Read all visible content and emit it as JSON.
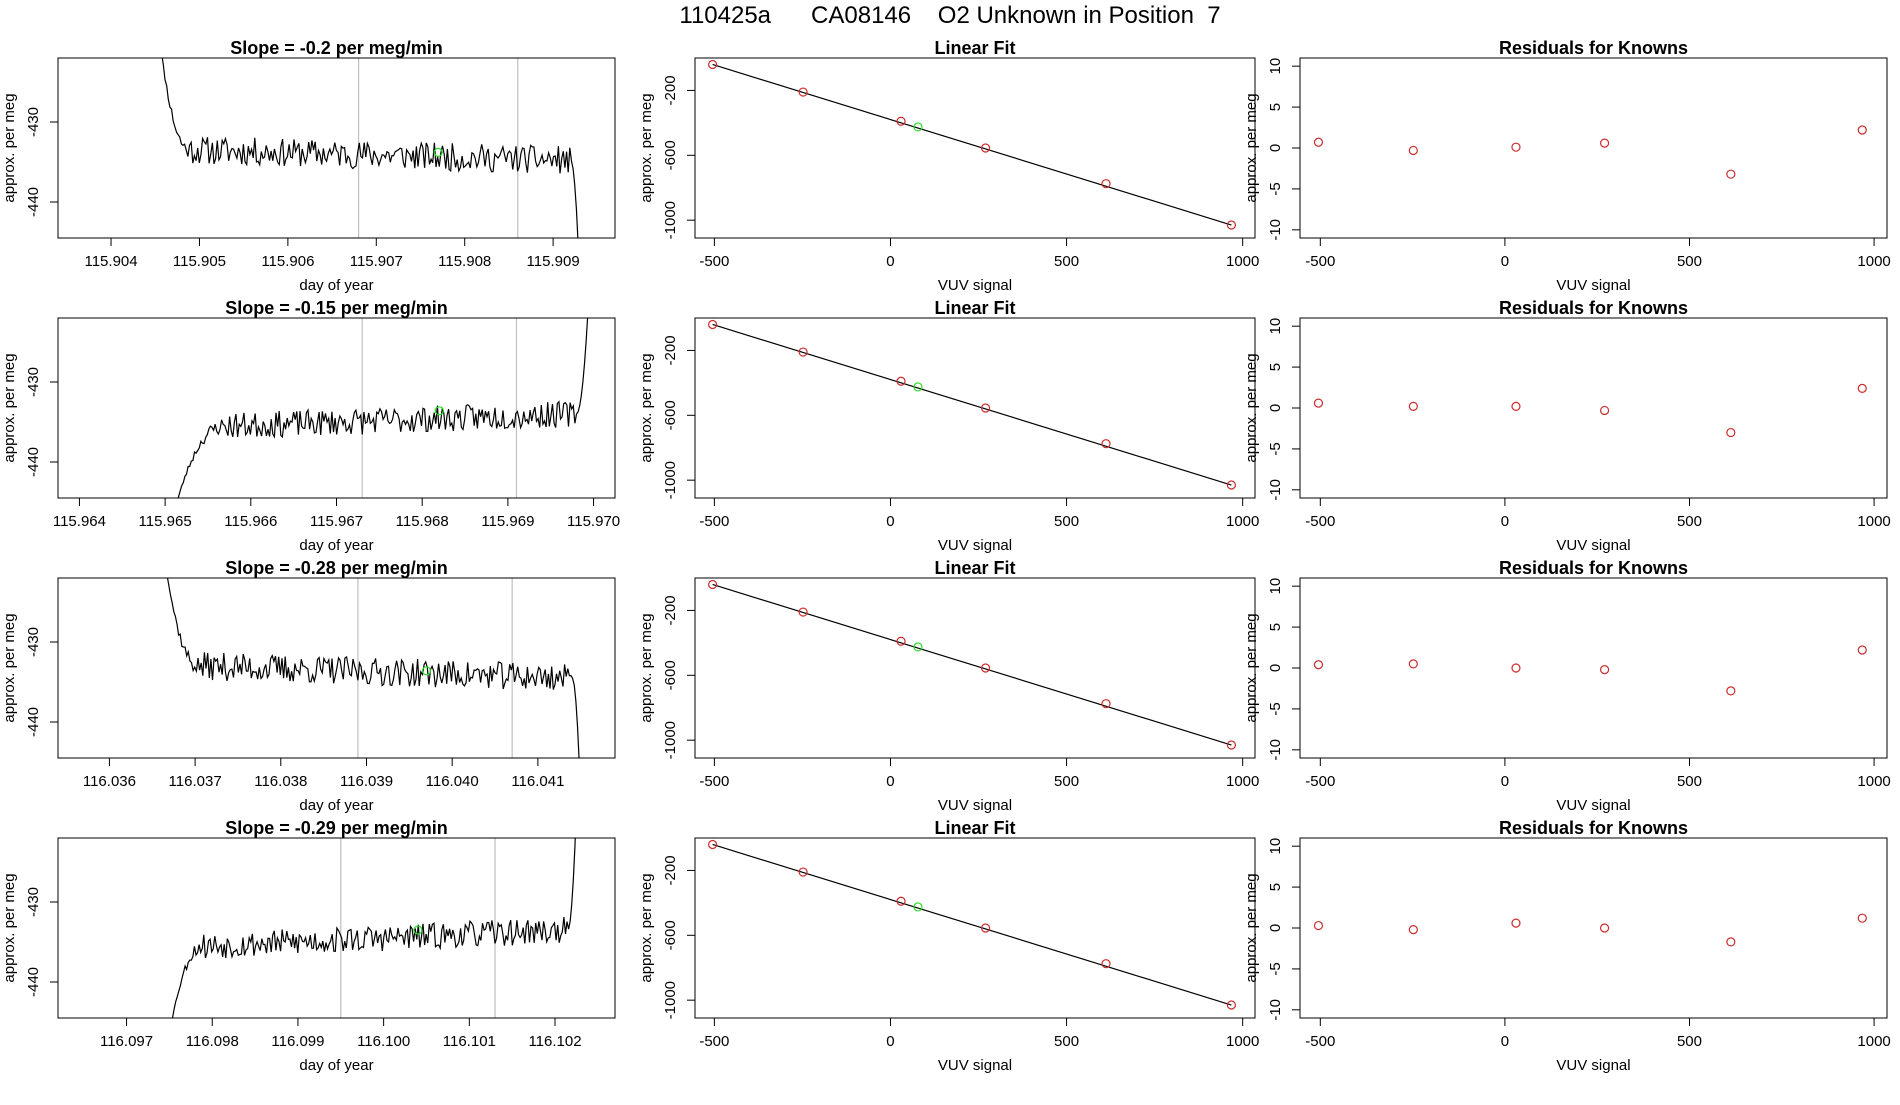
{
  "figure": {
    "title": "110425a      CA08146    O2 Unknown in Position  7"
  },
  "colors": {
    "axes": "#000000",
    "trace": "#000000",
    "marker_vline": "#bfbfbf",
    "known_points": "#cd2a2a",
    "unknown_point": "#22dd22",
    "fit_line": "#000000"
  },
  "chart_data": [
    {
      "type": "line",
      "panel": "time",
      "row": 0,
      "title": "Slope =  -0.2  per meg/min",
      "xlabel": "day of year",
      "ylabel": "approx. per meg",
      "xlim": [
        115.9034,
        115.9097
      ],
      "ylim": [
        -444.5,
        -422.0
      ],
      "xticks": [
        115.904,
        115.905,
        115.906,
        115.907,
        115.908,
        115.909
      ],
      "xtick_labels": [
        "115.904",
        "115.905",
        "115.906",
        "115.907",
        "115.908",
        "115.909"
      ],
      "yticks": [
        -430,
        -440
      ],
      "ytick_labels": [
        "-430",
        "-440"
      ],
      "vlines": [
        115.9068,
        115.9086
      ],
      "seed": 11,
      "trace_start": 115.9045,
      "trace_end": 115.9093,
      "plateau_start": 115.9049,
      "plateau_end": 115.9092,
      "level_start": -433.5,
      "level_end": -434.8,
      "noise": 1.6,
      "start_value": -415.0,
      "end_value": -450.0,
      "unknown_point": {
        "x": 115.9077,
        "y": -433.8
      }
    },
    {
      "type": "scatter",
      "panel": "fit",
      "row": 0,
      "title": "Linear Fit",
      "xlabel": "VUV signal",
      "ylabel": "approx. per meg",
      "xlim": [
        -555,
        1035
      ],
      "ylim": [
        -1110,
        0
      ],
      "xticks": [
        -500,
        0,
        500,
        1000
      ],
      "xtick_labels": [
        "-500",
        "0",
        "500",
        "1000"
      ],
      "yticks": [
        -200,
        -600,
        -1000
      ],
      "ytick_labels": [
        "-200",
        "-600",
        "-1000"
      ],
      "knowns_x": [
        -505,
        -248,
        30,
        270,
        612,
        968
      ],
      "knowns_y": [
        -40,
        -210,
        -390,
        -555,
        -775,
        -1030
      ],
      "fit_line": {
        "x": [
          -505,
          968
        ],
        "y": [
          -40,
          -1030
        ]
      },
      "unknown_point": {
        "x": 78,
        "y": -425
      }
    },
    {
      "type": "scatter",
      "panel": "residuals",
      "row": 0,
      "title": "Residuals for Knowns",
      "xlabel": "VUV signal",
      "ylabel": "approx. per meg",
      "xlim": [
        -555,
        1035
      ],
      "ylim": [
        -11,
        11
      ],
      "xticks": [
        -500,
        0,
        500,
        1000
      ],
      "xtick_labels": [
        "-500",
        "0",
        "500",
        "1000"
      ],
      "yticks": [
        10,
        5,
        0,
        -5,
        -10
      ],
      "ytick_labels": [
        "10",
        "5",
        "0",
        "-5",
        "-10"
      ],
      "x": [
        -505,
        -248,
        30,
        270,
        612,
        968
      ],
      "y": [
        0.7,
        -0.3,
        0.1,
        0.6,
        -3.2,
        2.2
      ]
    },
    {
      "type": "line",
      "panel": "time",
      "row": 1,
      "title": "Slope =  -0.15  per meg/min",
      "xlabel": "day of year",
      "ylabel": "approx. per meg",
      "xlim": [
        115.96375,
        115.97025
      ],
      "ylim": [
        -444.5,
        -422.0
      ],
      "xticks": [
        115.964,
        115.965,
        115.966,
        115.967,
        115.968,
        115.969,
        115.97
      ],
      "xtick_labels": [
        "115.964",
        "115.965",
        "115.966",
        "115.967",
        "115.968",
        "115.969",
        "115.970"
      ],
      "yticks": [
        -430,
        -440
      ],
      "ytick_labels": [
        "-430",
        "-440"
      ],
      "vlines": [
        115.9673,
        115.9691
      ],
      "seed": 23,
      "trace_start": 115.9651,
      "trace_end": 115.96995,
      "plateau_start": 115.9657,
      "plateau_end": 115.9698,
      "level_start": -435.5,
      "level_end": -434.0,
      "noise": 1.5,
      "start_value": -446.5,
      "end_value": -418.0,
      "unknown_point": {
        "x": 115.9682,
        "y": -433.6
      }
    },
    {
      "type": "scatter",
      "panel": "fit",
      "row": 1,
      "title": "Linear Fit",
      "xlabel": "VUV signal",
      "ylabel": "approx. per meg",
      "xlim": [
        -555,
        1035
      ],
      "ylim": [
        -1110,
        0
      ],
      "xticks": [
        -500,
        0,
        500,
        1000
      ],
      "xtick_labels": [
        "-500",
        "0",
        "500",
        "1000"
      ],
      "yticks": [
        -200,
        -600,
        -1000
      ],
      "ytick_labels": [
        "-200",
        "-600",
        "-1000"
      ],
      "knowns_x": [
        -505,
        -248,
        30,
        270,
        612,
        968
      ],
      "knowns_y": [
        -40,
        -210,
        -390,
        -555,
        -775,
        -1030
      ],
      "fit_line": {
        "x": [
          -505,
          968
        ],
        "y": [
          -40,
          -1030
        ]
      },
      "unknown_point": {
        "x": 78,
        "y": -425
      }
    },
    {
      "type": "scatter",
      "panel": "residuals",
      "row": 1,
      "title": "Residuals for Knowns",
      "xlabel": "VUV signal",
      "ylabel": "approx. per meg",
      "xlim": [
        -555,
        1035
      ],
      "ylim": [
        -11,
        11
      ],
      "xticks": [
        -500,
        0,
        500,
        1000
      ],
      "xtick_labels": [
        "-500",
        "0",
        "500",
        "1000"
      ],
      "yticks": [
        10,
        5,
        0,
        -5,
        -10
      ],
      "ytick_labels": [
        "10",
        "5",
        "0",
        "-5",
        "-10"
      ],
      "x": [
        -505,
        -248,
        30,
        270,
        612,
        968
      ],
      "y": [
        0.6,
        0.2,
        0.2,
        -0.3,
        -3.0,
        2.4
      ]
    },
    {
      "type": "line",
      "panel": "time",
      "row": 2,
      "title": "Slope =  -0.28  per meg/min",
      "xlabel": "day of year",
      "ylabel": "approx. per meg",
      "xlim": [
        116.0354,
        116.0419
      ],
      "ylim": [
        -444.5,
        -422.0
      ],
      "xticks": [
        116.036,
        116.037,
        116.038,
        116.039,
        116.04,
        116.041
      ],
      "xtick_labels": [
        "116.036",
        "116.037",
        "116.038",
        "116.039",
        "116.040",
        "116.041"
      ],
      "yticks": [
        -430,
        -440
      ],
      "ytick_labels": [
        "-430",
        "-440"
      ],
      "vlines": [
        116.0389,
        116.0407
      ],
      "seed": 37,
      "trace_start": 116.0366,
      "trace_end": 116.0415,
      "plateau_start": 116.03705,
      "plateau_end": 116.0414,
      "level_start": -433.0,
      "level_end": -434.5,
      "noise": 1.6,
      "start_value": -416.0,
      "end_value": -450.0,
      "unknown_point": {
        "x": 116.0397,
        "y": -433.6
      }
    },
    {
      "type": "scatter",
      "panel": "fit",
      "row": 2,
      "title": "Linear Fit",
      "xlabel": "VUV signal",
      "ylabel": "approx. per meg",
      "xlim": [
        -555,
        1035
      ],
      "ylim": [
        -1110,
        0
      ],
      "xticks": [
        -500,
        0,
        500,
        1000
      ],
      "xtick_labels": [
        "-500",
        "0",
        "500",
        "1000"
      ],
      "yticks": [
        -200,
        -600,
        -1000
      ],
      "ytick_labels": [
        "-200",
        "-600",
        "-1000"
      ],
      "knowns_x": [
        -505,
        -248,
        30,
        270,
        612,
        968
      ],
      "knowns_y": [
        -40,
        -210,
        -390,
        -555,
        -775,
        -1030
      ],
      "fit_line": {
        "x": [
          -505,
          968
        ],
        "y": [
          -40,
          -1030
        ]
      },
      "unknown_point": {
        "x": 78,
        "y": -425
      }
    },
    {
      "type": "scatter",
      "panel": "residuals",
      "row": 2,
      "title": "Residuals for Knowns",
      "xlabel": "VUV signal",
      "ylabel": "approx. per meg",
      "xlim": [
        -555,
        1035
      ],
      "ylim": [
        -11,
        11
      ],
      "xticks": [
        -500,
        0,
        500,
        1000
      ],
      "xtick_labels": [
        "-500",
        "0",
        "500",
        "1000"
      ],
      "yticks": [
        10,
        5,
        0,
        -5,
        -10
      ],
      "ytick_labels": [
        "10",
        "5",
        "0",
        "-5",
        "-10"
      ],
      "x": [
        -505,
        -248,
        30,
        270,
        612,
        968
      ],
      "y": [
        0.4,
        0.5,
        0.0,
        -0.2,
        -2.8,
        2.2
      ]
    },
    {
      "type": "line",
      "panel": "time",
      "row": 3,
      "title": "Slope =  -0.29  per meg/min",
      "xlabel": "day of year",
      "ylabel": "approx. per meg",
      "xlim": [
        116.0962,
        116.1027
      ],
      "ylim": [
        -444.5,
        -422.0
      ],
      "xticks": [
        116.097,
        116.098,
        116.099,
        116.1,
        116.101,
        116.102
      ],
      "xtick_labels": [
        "116.097",
        "116.098",
        "116.099",
        "116.100",
        "116.101",
        "116.102"
      ],
      "yticks": [
        -430,
        -440
      ],
      "ytick_labels": [
        "-430",
        "-440"
      ],
      "vlines": [
        116.0995,
        116.1013
      ],
      "seed": 53,
      "trace_start": 116.0975,
      "trace_end": 116.10225,
      "plateau_start": 116.0979,
      "plateau_end": 116.10215,
      "level_start": -435.5,
      "level_end": -433.5,
      "noise": 1.5,
      "start_value": -446.5,
      "end_value": -418.0,
      "unknown_point": {
        "x": 116.1004,
        "y": -433.5
      }
    },
    {
      "type": "scatter",
      "panel": "fit",
      "row": 3,
      "title": "Linear Fit",
      "xlabel": "VUV signal",
      "ylabel": "approx. per meg",
      "xlim": [
        -555,
        1035
      ],
      "ylim": [
        -1110,
        0
      ],
      "xticks": [
        -500,
        0,
        500,
        1000
      ],
      "xtick_labels": [
        "-500",
        "0",
        "500",
        "1000"
      ],
      "yticks": [
        -200,
        -600,
        -1000
      ],
      "ytick_labels": [
        "-200",
        "-600",
        "-1000"
      ],
      "knowns_x": [
        -505,
        -248,
        30,
        270,
        612,
        968
      ],
      "knowns_y": [
        -40,
        -210,
        -390,
        -555,
        -775,
        -1030
      ],
      "fit_line": {
        "x": [
          -505,
          968
        ],
        "y": [
          -40,
          -1030
        ]
      },
      "unknown_point": {
        "x": 78,
        "y": -425
      }
    },
    {
      "type": "scatter",
      "panel": "residuals",
      "row": 3,
      "title": "Residuals for Knowns",
      "xlabel": "VUV signal",
      "ylabel": "approx. per meg",
      "xlim": [
        -555,
        1035
      ],
      "ylim": [
        -11,
        11
      ],
      "xticks": [
        -500,
        0,
        500,
        1000
      ],
      "xtick_labels": [
        "-500",
        "0",
        "500",
        "1000"
      ],
      "yticks": [
        10,
        5,
        0,
        -5,
        -10
      ],
      "ytick_labels": [
        "10",
        "5",
        "0",
        "-5",
        "-10"
      ],
      "x": [
        -505,
        -248,
        30,
        270,
        612,
        968
      ],
      "y": [
        0.3,
        -0.2,
        0.6,
        0.0,
        -1.7,
        1.2
      ]
    }
  ]
}
